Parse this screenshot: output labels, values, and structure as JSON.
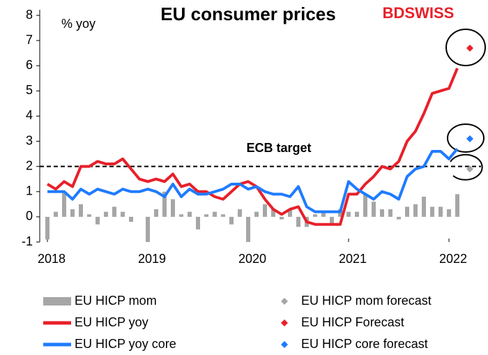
{
  "logo": "BDSWISS",
  "chart_data": {
    "type": "combo",
    "title": "EU consumer prices",
    "y_label": "% yoy",
    "annotations": [
      "ECB target"
    ],
    "target_value": 2,
    "categories": [
      "2018",
      null,
      null,
      null,
      null,
      null,
      null,
      null,
      null,
      null,
      null,
      null,
      "2019",
      null,
      null,
      null,
      null,
      null,
      null,
      null,
      null,
      null,
      null,
      null,
      "2020",
      null,
      null,
      null,
      null,
      null,
      null,
      null,
      null,
      null,
      null,
      null,
      "2021",
      null,
      null,
      null,
      null,
      null,
      null,
      null,
      null,
      null,
      null,
      null,
      "2022",
      null,
      null
    ],
    "ylim": [
      -1,
      8
    ],
    "yticks": [
      -1,
      0,
      1,
      2,
      3,
      4,
      5,
      6,
      7,
      8
    ],
    "series": [
      {
        "name": "EU HICP mom",
        "type": "bar",
        "color": "#a6a6a6",
        "values": [
          -0.9,
          0.2,
          1.0,
          0.3,
          0.5,
          0.1,
          -0.3,
          0.2,
          0.4,
          0.2,
          -0.2,
          0.0,
          -1.0,
          0.3,
          1.0,
          0.7,
          0.1,
          0.2,
          -0.5,
          0.1,
          0.2,
          0.1,
          -0.3,
          0.3,
          -1.0,
          0.2,
          0.5,
          0.3,
          -0.1,
          0.3,
          -0.4,
          -0.4,
          0.1,
          0.2,
          -0.3,
          0.3,
          0.2,
          0.2,
          0.9,
          0.6,
          0.3,
          0.3,
          -0.1,
          0.4,
          0.5,
          0.8,
          0.4,
          0.4,
          0.3,
          0.9,
          null
        ]
      },
      {
        "name": "EU HICP mom forecast",
        "type": "marker",
        "color": "#a6a6a6",
        "values": [
          null,
          null,
          null,
          null,
          null,
          null,
          null,
          null,
          null,
          null,
          null,
          null,
          null,
          null,
          null,
          null,
          null,
          null,
          null,
          null,
          null,
          null,
          null,
          null,
          null,
          null,
          null,
          null,
          null,
          null,
          null,
          null,
          null,
          null,
          null,
          null,
          null,
          null,
          null,
          null,
          null,
          null,
          null,
          null,
          null,
          null,
          null,
          null,
          null,
          null,
          1.9
        ]
      },
      {
        "name": "EU HICP yoy",
        "type": "line",
        "color": "#e8202a",
        "values": [
          1.3,
          1.1,
          1.4,
          1.2,
          2.0,
          2.0,
          2.2,
          2.1,
          2.1,
          2.3,
          1.9,
          1.5,
          1.4,
          1.5,
          1.4,
          1.7,
          1.2,
          1.3,
          1.0,
          1.0,
          0.8,
          0.7,
          1.0,
          1.3,
          1.4,
          1.2,
          0.7,
          0.3,
          0.1,
          0.3,
          0.4,
          -0.2,
          -0.3,
          -0.3,
          -0.3,
          -0.3,
          0.9,
          0.9,
          1.3,
          1.6,
          2.0,
          1.9,
          2.2,
          3.0,
          3.4,
          4.1,
          4.9,
          5.0,
          5.1,
          5.9,
          null
        ]
      },
      {
        "name": "EU HICP Forecast",
        "type": "marker",
        "color": "#e8202a",
        "values": [
          null,
          null,
          null,
          null,
          null,
          null,
          null,
          null,
          null,
          null,
          null,
          null,
          null,
          null,
          null,
          null,
          null,
          null,
          null,
          null,
          null,
          null,
          null,
          null,
          null,
          null,
          null,
          null,
          null,
          null,
          null,
          null,
          null,
          null,
          null,
          null,
          null,
          null,
          null,
          null,
          null,
          null,
          null,
          null,
          null,
          null,
          null,
          null,
          null,
          null,
          6.7
        ]
      },
      {
        "name": "EU HICP yoy core",
        "type": "line",
        "color": "#1f7bff",
        "values": [
          1.0,
          1.0,
          1.0,
          0.7,
          1.1,
          0.9,
          1.1,
          1.0,
          0.9,
          1.1,
          1.0,
          1.0,
          1.1,
          1.0,
          0.8,
          1.3,
          0.8,
          1.1,
          0.9,
          0.9,
          1.0,
          1.1,
          1.3,
          1.3,
          1.1,
          1.2,
          1.0,
          0.9,
          0.9,
          0.8,
          1.2,
          0.4,
          0.2,
          0.2,
          0.2,
          0.2,
          1.4,
          1.1,
          0.9,
          0.7,
          1.0,
          0.9,
          0.7,
          1.6,
          1.9,
          2.0,
          2.6,
          2.6,
          2.3,
          2.7,
          null
        ]
      },
      {
        "name": "EU HICP core forecast",
        "type": "marker",
        "color": "#1f7bff",
        "values": [
          null,
          null,
          null,
          null,
          null,
          null,
          null,
          null,
          null,
          null,
          null,
          null,
          null,
          null,
          null,
          null,
          null,
          null,
          null,
          null,
          null,
          null,
          null,
          null,
          null,
          null,
          null,
          null,
          null,
          null,
          null,
          null,
          null,
          null,
          null,
          null,
          null,
          null,
          null,
          null,
          null,
          null,
          null,
          null,
          null,
          null,
          null,
          null,
          null,
          null,
          3.1
        ]
      }
    ]
  }
}
